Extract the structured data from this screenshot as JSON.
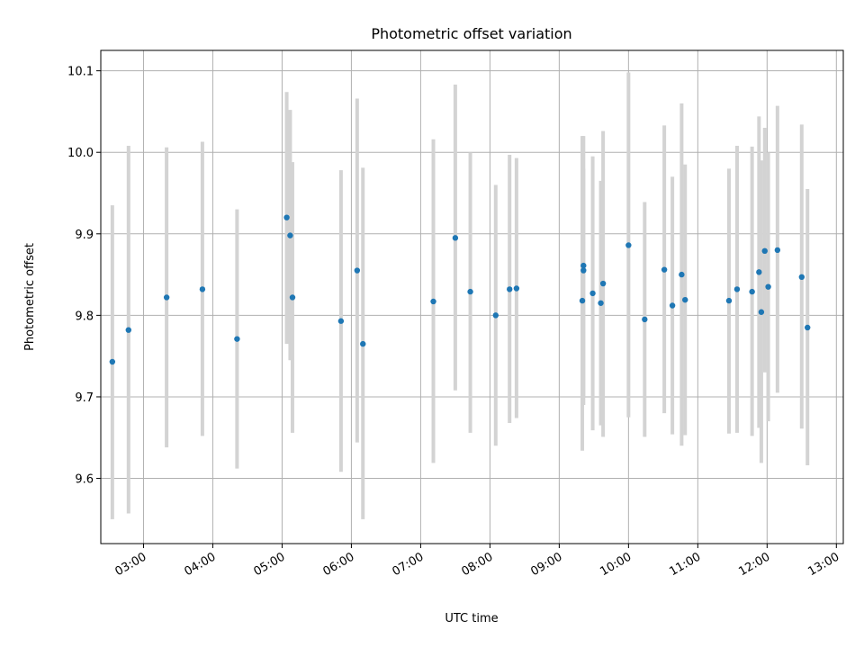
{
  "chart_data": {
    "type": "scatter",
    "title": "Photometric offset variation",
    "xlabel": "UTC time",
    "ylabel": "Photometric offset",
    "grid": true,
    "xlim": [
      "02:23",
      "13:06"
    ],
    "ylim": [
      9.52,
      10.125
    ],
    "x_ticks": [
      "03:00",
      "04:00",
      "05:00",
      "06:00",
      "07:00",
      "08:00",
      "09:00",
      "10:00",
      "11:00",
      "12:00",
      "13:00"
    ],
    "y_ticks": [
      9.6,
      9.7,
      9.8,
      9.9,
      10.0,
      10.1
    ],
    "y_tick_labels": [
      "9.6",
      "9.7",
      "9.8",
      "9.9",
      "10.0",
      "10.1"
    ],
    "marker_color": "#1f77b4",
    "errorbar_color": "#d3d3d3",
    "points": [
      {
        "x": "02:33",
        "y": 9.743,
        "lo": 9.55,
        "hi": 9.935
      },
      {
        "x": "02:47",
        "y": 9.782,
        "lo": 9.557,
        "hi": 10.008
      },
      {
        "x": "03:20",
        "y": 9.822,
        "lo": 9.638,
        "hi": 10.006
      },
      {
        "x": "03:51",
        "y": 9.832,
        "lo": 9.652,
        "hi": 10.013
      },
      {
        "x": "04:21",
        "y": 9.771,
        "lo": 9.612,
        "hi": 9.93
      },
      {
        "x": "05:04",
        "y": 9.92,
        "lo": 9.765,
        "hi": 10.074
      },
      {
        "x": "05:07",
        "y": 9.898,
        "lo": 9.745,
        "hi": 10.052
      },
      {
        "x": "05:09",
        "y": 9.822,
        "lo": 9.656,
        "hi": 9.988
      },
      {
        "x": "05:51",
        "y": 9.793,
        "lo": 9.608,
        "hi": 9.978
      },
      {
        "x": "06:05",
        "y": 9.855,
        "lo": 9.644,
        "hi": 10.066
      },
      {
        "x": "06:10",
        "y": 9.765,
        "lo": 9.55,
        "hi": 9.981
      },
      {
        "x": "07:11",
        "y": 9.817,
        "lo": 9.619,
        "hi": 10.016
      },
      {
        "x": "07:30",
        "y": 9.895,
        "lo": 9.708,
        "hi": 10.083
      },
      {
        "x": "07:43",
        "y": 9.829,
        "lo": 9.656,
        "hi": 10.0
      },
      {
        "x": "08:05",
        "y": 9.8,
        "lo": 9.64,
        "hi": 9.96
      },
      {
        "x": "08:17",
        "y": 9.832,
        "lo": 9.668,
        "hi": 9.997
      },
      {
        "x": "08:23",
        "y": 9.833,
        "lo": 9.674,
        "hi": 9.993
      },
      {
        "x": "09:20",
        "y": 9.818,
        "lo": 9.634,
        "hi": 10.02
      },
      {
        "x": "09:21",
        "y": 9.861,
        "lo": 9.7,
        "hi": 10.02
      },
      {
        "x": "09:21",
        "y": 9.855,
        "lo": 9.69,
        "hi": 9.98
      },
      {
        "x": "09:29",
        "y": 9.827,
        "lo": 9.659,
        "hi": 9.995
      },
      {
        "x": "09:36",
        "y": 9.815,
        "lo": 9.665,
        "hi": 9.965
      },
      {
        "x": "09:38",
        "y": 9.839,
        "lo": 9.651,
        "hi": 10.026
      },
      {
        "x": "10:00",
        "y": 9.886,
        "lo": 9.675,
        "hi": 10.098
      },
      {
        "x": "10:14",
        "y": 9.795,
        "lo": 9.651,
        "hi": 9.939
      },
      {
        "x": "10:31",
        "y": 9.856,
        "lo": 9.68,
        "hi": 10.033
      },
      {
        "x": "10:38",
        "y": 9.812,
        "lo": 9.654,
        "hi": 9.97
      },
      {
        "x": "10:46",
        "y": 9.85,
        "lo": 9.64,
        "hi": 10.06
      },
      {
        "x": "10:49",
        "y": 9.819,
        "lo": 9.653,
        "hi": 9.985
      },
      {
        "x": "11:27",
        "y": 9.818,
        "lo": 9.655,
        "hi": 9.98
      },
      {
        "x": "11:34",
        "y": 9.832,
        "lo": 9.656,
        "hi": 10.008
      },
      {
        "x": "11:47",
        "y": 9.829,
        "lo": 9.652,
        "hi": 10.007
      },
      {
        "x": "11:53",
        "y": 9.853,
        "lo": 9.662,
        "hi": 10.044
      },
      {
        "x": "11:55",
        "y": 9.804,
        "lo": 9.619,
        "hi": 9.99
      },
      {
        "x": "11:58",
        "y": 9.879,
        "lo": 9.73,
        "hi": 10.03
      },
      {
        "x": "12:01",
        "y": 9.835,
        "lo": 9.67,
        "hi": 10.0
      },
      {
        "x": "12:09",
        "y": 9.88,
        "lo": 9.705,
        "hi": 10.057
      },
      {
        "x": "12:30",
        "y": 9.847,
        "lo": 9.661,
        "hi": 10.034
      },
      {
        "x": "12:35",
        "y": 9.785,
        "lo": 9.616,
        "hi": 9.955
      }
    ]
  }
}
